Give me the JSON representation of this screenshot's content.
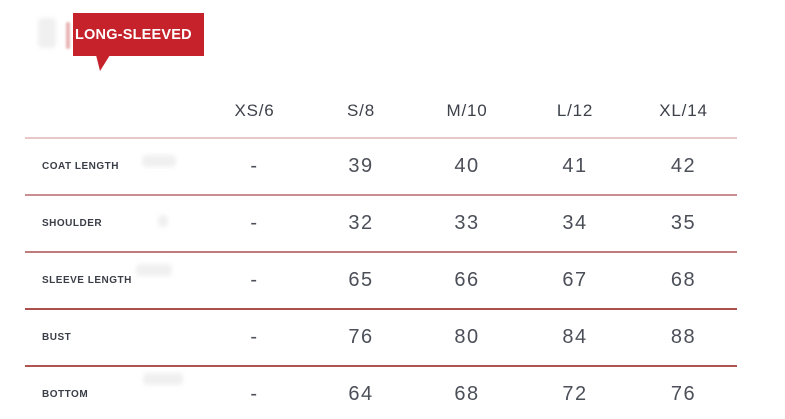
{
  "badge": {
    "label": "LONG-SLEEVED"
  },
  "chart_data": {
    "type": "table",
    "title": "LONG-SLEEVED",
    "columns": [
      "XS/6",
      "S/8",
      "M/10",
      "L/12",
      "XL/14"
    ],
    "rows": [
      {
        "label": "COAT LENGTH",
        "values": [
          "-",
          "39",
          "40",
          "41",
          "42"
        ]
      },
      {
        "label": "SHOULDER",
        "values": [
          "-",
          "32",
          "33",
          "34",
          "35"
        ]
      },
      {
        "label": "SLEEVE LENGTH",
        "values": [
          "-",
          "65",
          "66",
          "67",
          "68"
        ]
      },
      {
        "label": "BUST",
        "values": [
          "-",
          "76",
          "80",
          "84",
          "88"
        ]
      },
      {
        "label": "BOTTOM",
        "values": [
          "-",
          "64",
          "68",
          "72",
          "76"
        ]
      }
    ]
  },
  "colors": {
    "badge_red": "#c5222b",
    "divider_light": "#e7c7c8",
    "divider_strong": "#ad4f4b",
    "text_dark": "#3d414a"
  }
}
